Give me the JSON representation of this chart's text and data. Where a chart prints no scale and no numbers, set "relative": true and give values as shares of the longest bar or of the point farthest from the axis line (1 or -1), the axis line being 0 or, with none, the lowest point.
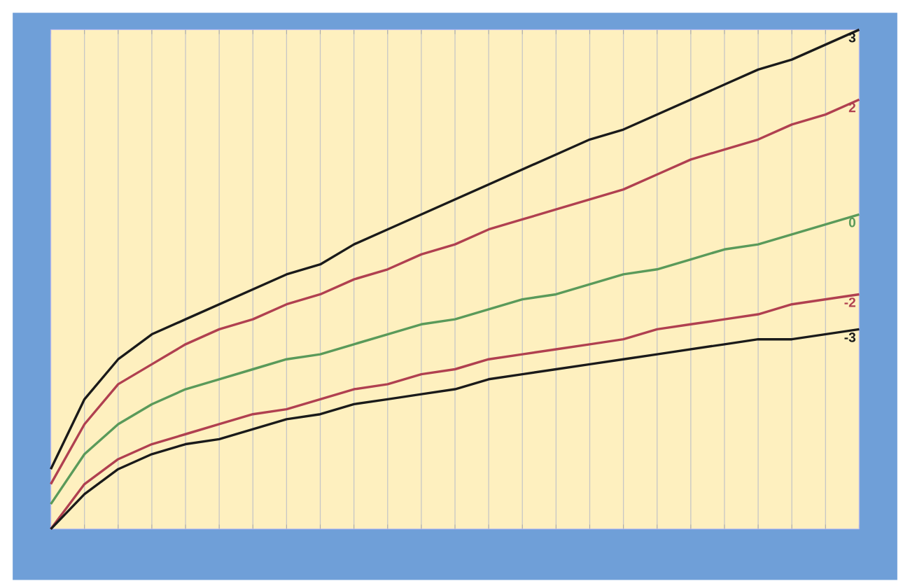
{
  "chart_data": {
    "type": "line",
    "relative": true,
    "grid": "x",
    "marker": "none",
    "line_style": "solid",
    "categories": [
      null,
      null,
      null,
      null,
      null,
      null,
      null,
      null,
      null,
      null,
      null,
      null,
      null,
      null,
      null,
      null,
      null,
      null,
      null,
      null,
      null,
      null,
      null,
      null,
      null
    ],
    "series": [
      {
        "name": "3",
        "color": "#1a1a1a",
        "values": [
          0.12,
          0.26,
          0.34,
          0.39,
          0.42,
          0.45,
          0.48,
          0.51,
          0.53,
          0.57,
          0.6,
          0.63,
          0.66,
          0.69,
          0.72,
          0.75,
          0.78,
          0.8,
          0.83,
          0.86,
          0.89,
          0.92,
          0.94,
          0.97,
          1
        ]
      },
      {
        "name": "2",
        "color": "#b04050",
        "values": [
          0.09,
          0.21,
          0.29,
          0.33,
          0.37,
          0.4,
          0.42,
          0.45,
          0.47,
          0.5,
          0.52,
          0.55,
          0.57,
          0.6,
          0.62,
          0.64,
          0.66,
          0.68,
          0.71,
          0.74,
          0.76,
          0.78,
          0.81,
          0.83,
          0.86
        ]
      },
      {
        "name": "0",
        "color": "#5a9a5a",
        "values": [
          0.05,
          0.15,
          0.21,
          0.25,
          0.28,
          0.3,
          0.32,
          0.34,
          0.35,
          0.37,
          0.39,
          0.41,
          0.42,
          0.44,
          0.46,
          0.47,
          0.49,
          0.51,
          0.52,
          0.54,
          0.56,
          0.57,
          0.59,
          0.61,
          0.63
        ]
      },
      {
        "name": "-2",
        "color": "#b04050",
        "values": [
          0,
          0.09,
          0.14,
          0.17,
          0.19,
          0.21,
          0.23,
          0.24,
          0.26,
          0.28,
          0.29,
          0.31,
          0.32,
          0.34,
          0.35,
          0.36,
          0.37,
          0.38,
          0.4,
          0.41,
          0.42,
          0.43,
          0.45,
          0.46,
          0.47
        ]
      },
      {
        "name": "-3",
        "color": "#1a1a1a",
        "values": [
          0,
          0.07,
          0.12,
          0.15,
          0.17,
          0.18,
          0.2,
          0.22,
          0.23,
          0.25,
          0.26,
          0.27,
          0.28,
          0.3,
          0.31,
          0.32,
          0.33,
          0.34,
          0.35,
          0.36,
          0.37,
          0.38,
          0.38,
          0.39,
          0.4
        ]
      }
    ]
  }
}
